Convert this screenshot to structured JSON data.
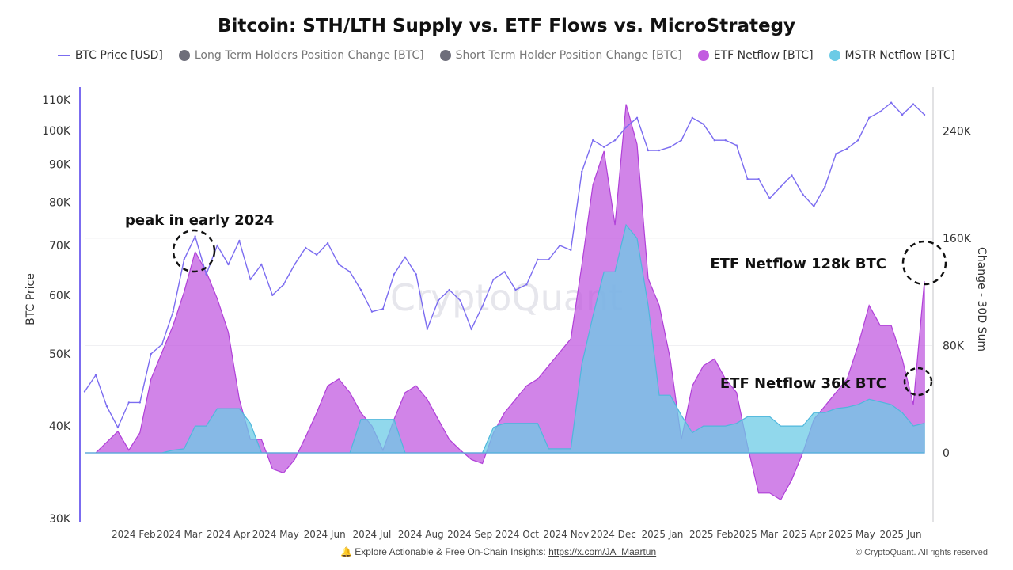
{
  "title": "Bitcoin: STH/LTH Supply vs. ETF Flows vs. MicroStrategy",
  "legend": [
    {
      "label": "BTC Price [USD]",
      "color": "#7b6cf0",
      "marker": "line",
      "active": true
    },
    {
      "label": "Long Term Holders Position Change [BTC]",
      "color": "#6e6e7a",
      "marker": "dot",
      "active": false
    },
    {
      "label": "Short Term Holder Position Change [BTC]",
      "color": "#6e6e7a",
      "marker": "dot",
      "active": false
    },
    {
      "label": "ETF Netflow [BTC]",
      "color": "#c25be0",
      "marker": "dot",
      "active": true
    },
    {
      "label": "MSTR Netflow [BTC]",
      "color": "#6ccbe6",
      "marker": "dot",
      "active": true
    }
  ],
  "watermark": "CryptoQuant",
  "footer": {
    "text": "Explore Actionable & Free On-Chain Insights: ",
    "link": "https://x.com/JA_Maartun",
    "icon": "bell-icon",
    "copyright": "© CryptoQuant. All rights reserved"
  },
  "chart_data": {
    "type": "line+area",
    "title": "Bitcoin: STH/LTH Supply vs. ETF Flows vs. MicroStrategy",
    "ylabel_left": "BTC Price",
    "ylabel_right": "Change - 30D Sum",
    "left_axis": {
      "scale": "log",
      "range": [
        30000,
        110000
      ],
      "ticks": [
        30000,
        40000,
        50000,
        60000,
        70000,
        80000,
        90000,
        100000,
        110000
      ],
      "tick_labels": [
        "30K",
        "40K",
        "50K",
        "60K",
        "70K",
        "80K",
        "90K",
        "100K",
        "110K"
      ]
    },
    "right_axis": {
      "scale": "linear",
      "range": [
        -50000,
        275000
      ],
      "ticks": [
        0,
        80000,
        160000,
        240000
      ],
      "tick_labels": [
        "0",
        "80K",
        "160K",
        "240K"
      ]
    },
    "x_axis": {
      "range": [
        "2024-01-01",
        "2025-06-18"
      ],
      "tick_dates": [
        "2024-02-01",
        "2024-03-01",
        "2024-04-01",
        "2024-05-01",
        "2024-06-01",
        "2024-07-01",
        "2024-08-01",
        "2024-09-01",
        "2024-10-01",
        "2024-11-01",
        "2024-12-01",
        "2025-01-01",
        "2025-02-01",
        "2025-03-01",
        "2025-04-01",
        "2025-05-01",
        "2025-06-01"
      ],
      "tick_labels": [
        "2024 Feb",
        "2024 Mar",
        "2024 Apr",
        "2024 May",
        "2024 Jun",
        "2024 Jul",
        "2024 Aug",
        "2024 Sep",
        "2024 Oct",
        "2024 Nov",
        "2024 Dec",
        "2025 Jan",
        "2025 Feb",
        "2025 Mar",
        "2025 Apr",
        "2025 May",
        "2025 Jun"
      ]
    },
    "grid": true,
    "legend_position": "top",
    "weekly_start": "2024-01-01",
    "series": [
      {
        "name": "BTC Price [USD]",
        "axis": "left",
        "type": "line",
        "color": "#7b6cf0",
        "values": [
          44500,
          46800,
          42500,
          39800,
          43000,
          43000,
          50000,
          51500,
          57000,
          67000,
          72000,
          64000,
          70000,
          66000,
          71000,
          63000,
          66000,
          60000,
          62000,
          66000,
          69500,
          68000,
          70500,
          66000,
          64500,
          61000,
          57000,
          57500,
          64000,
          67500,
          64000,
          54000,
          59000,
          61000,
          59000,
          54000,
          58000,
          63000,
          64500,
          61000,
          62000,
          67000,
          67000,
          70000,
          69000,
          88000,
          97000,
          95000,
          97000,
          101000,
          104000,
          94000,
          94000,
          95000,
          97000,
          104000,
          102000,
          97000,
          97000,
          95500,
          86000,
          86000,
          81000,
          84000,
          87000,
          82000,
          79000,
          84000,
          93000,
          94500,
          97000,
          104000,
          106000,
          109000,
          105000,
          108500,
          105000
        ]
      },
      {
        "name": "ETF Netflow [BTC]",
        "axis": "right",
        "type": "area",
        "color": "#c25be0",
        "values": [
          0,
          0,
          8000,
          16000,
          2000,
          15000,
          55000,
          75000,
          95000,
          120000,
          150000,
          135000,
          115000,
          90000,
          40000,
          10000,
          10000,
          -12000,
          -15000,
          -5000,
          12000,
          30000,
          50000,
          55000,
          45000,
          30000,
          20000,
          2000,
          25000,
          45000,
          50000,
          40000,
          25000,
          10000,
          2000,
          -5000,
          -8000,
          15000,
          30000,
          40000,
          50000,
          55000,
          65000,
          75000,
          85000,
          140000,
          200000,
          225000,
          170000,
          260000,
          230000,
          130000,
          110000,
          70000,
          10000,
          50000,
          65000,
          70000,
          55000,
          45000,
          5000,
          -30000,
          -30000,
          -35000,
          -20000,
          0,
          25000,
          35000,
          45000,
          55000,
          80000,
          110000,
          95000,
          95000,
          70000,
          36000,
          128000
        ]
      },
      {
        "name": "MSTR Netflow [BTC]",
        "axis": "right",
        "type": "area",
        "color": "#6ccbe6",
        "values": [
          0,
          0,
          0,
          0,
          0,
          0,
          0,
          0,
          2000,
          3000,
          20000,
          20000,
          33000,
          33000,
          33000,
          22000,
          0,
          0,
          0,
          0,
          0,
          0,
          0,
          0,
          0,
          25000,
          25000,
          25000,
          25000,
          0,
          0,
          0,
          0,
          0,
          0,
          0,
          0,
          19000,
          22000,
          22000,
          22000,
          22000,
          3000,
          3000,
          3000,
          66000,
          102000,
          135000,
          135000,
          170000,
          160000,
          110000,
          43000,
          43000,
          28000,
          15000,
          20000,
          20000,
          20000,
          22000,
          27000,
          27000,
          27000,
          20000,
          20000,
          20000,
          30000,
          30000,
          33000,
          34000,
          36000,
          40000,
          38000,
          36000,
          30000,
          20000,
          22000
        ]
      }
    ],
    "annotations": [
      {
        "text": "peak in early 2024",
        "date": "2024-03-14"
      },
      {
        "text": "ETF Netflow 128k BTC",
        "date": "2025-06-17"
      },
      {
        "text": "ETF Netflow 36k BTC",
        "date": "2025-06-14"
      }
    ]
  }
}
